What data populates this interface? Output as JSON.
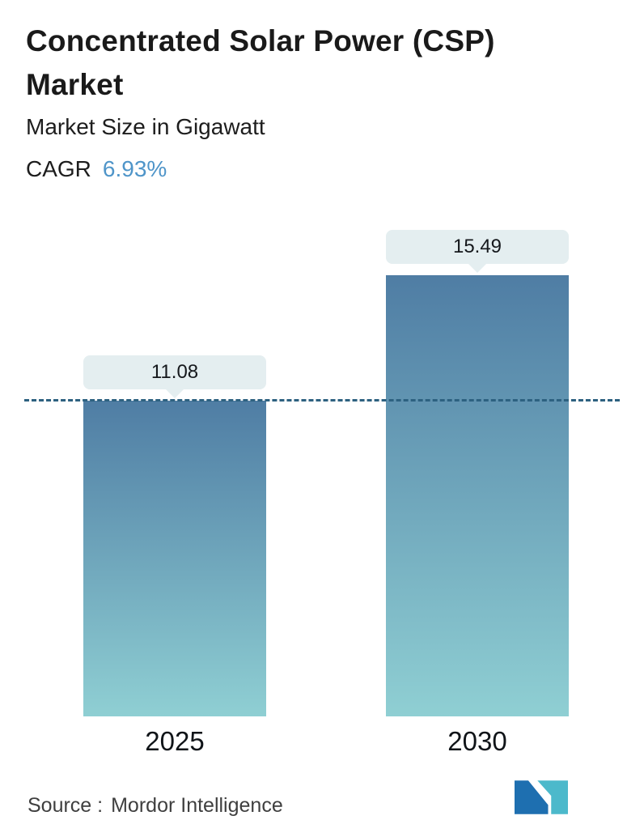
{
  "header": {
    "title": "Concentrated Solar Power (CSP) Market",
    "subtitle": "Market Size in Gigawatt",
    "cagr_label": "CAGR",
    "cagr_value": "6.93%"
  },
  "chart_data": {
    "type": "bar",
    "categories": [
      "2025",
      "2030"
    ],
    "values": [
      11.08,
      15.49
    ],
    "title": "Concentrated Solar Power (CSP) Market",
    "xlabel": "",
    "ylabel": "Market Size in Gigawatt",
    "ylim": [
      0,
      16
    ],
    "grid": false,
    "legend": false,
    "reference_line": {
      "value": 11.08,
      "style": "dashed"
    },
    "bar_gradient": [
      "#4f7da4",
      "#8fcfd3"
    ]
  },
  "footer": {
    "source_label": "Source :",
    "source_value": "Mordor Intelligence",
    "logo": "mordor-intelligence-logo"
  },
  "colors": {
    "accent_blue": "#4f95c9",
    "dashed_line": "#2d6180",
    "label_box_bg": "#e4eef0",
    "bar_top": "#4f7da4",
    "bar_bottom": "#8fcfd3",
    "logo_blue": "#1e6fb0",
    "logo_teal": "#4cb9cb"
  }
}
